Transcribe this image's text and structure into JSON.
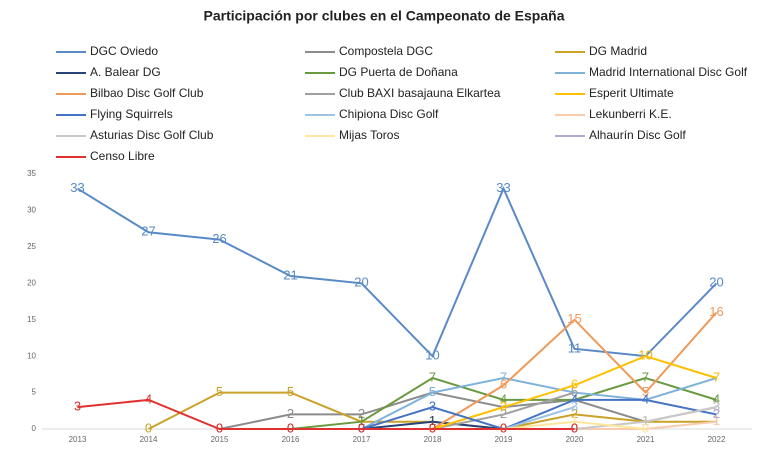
{
  "chart_data": {
    "type": "line",
    "title": "Participación por clubes en el Campeonato de España",
    "categories": [
      "2013",
      "2014",
      "2015",
      "2016",
      "2017",
      "2018",
      "2019",
      "2020",
      "2021",
      "2022"
    ],
    "ylim": [
      0,
      35
    ],
    "yticks": [
      0,
      5,
      10,
      15,
      20,
      25,
      30,
      35
    ],
    "grid": false,
    "data_labels": true,
    "series": [
      {
        "name": "DGC Oviedo",
        "color": "#5a8ac6",
        "values": [
          33,
          27,
          26,
          21,
          20,
          10,
          33,
          11,
          10,
          20
        ]
      },
      {
        "name": "Compostela DGC",
        "color": "#8c8c8c",
        "values": [
          null,
          null,
          0,
          2,
          2,
          5,
          3,
          4,
          1,
          3
        ]
      },
      {
        "name": "DG Madrid",
        "color": "#c9a227",
        "values": [
          null,
          0,
          5,
          5,
          1,
          1,
          0,
          2,
          1,
          1
        ]
      },
      {
        "name": "A. Balear DG",
        "color": "#264478",
        "values": [
          null,
          null,
          null,
          null,
          0,
          1,
          0,
          0,
          null,
          null
        ]
      },
      {
        "name": "DG Puerta de Doñana",
        "color": "#6a9a40",
        "values": [
          null,
          null,
          null,
          0,
          1,
          7,
          4,
          4,
          7,
          4
        ]
      },
      {
        "name": "Madrid International Disc Golf",
        "color": "#7fb2d9",
        "values": [
          null,
          null,
          null,
          null,
          0,
          5,
          7,
          5,
          4,
          7
        ]
      },
      {
        "name": "Bilbao Disc Golf Club",
        "color": "#ed9a5b",
        "values": [
          null,
          null,
          null,
          null,
          null,
          0,
          6,
          15,
          5,
          16
        ]
      },
      {
        "name": "Club BAXI basajauna Elkartea",
        "color": "#a0a0a0",
        "values": [
          null,
          null,
          null,
          null,
          null,
          0,
          2,
          5,
          null,
          null
        ]
      },
      {
        "name": "Esperit Ultimate",
        "color": "#ffc000",
        "values": [
          null,
          null,
          null,
          null,
          null,
          0,
          3,
          6,
          10,
          7
        ]
      },
      {
        "name": "Flying Squirrels",
        "color": "#4472c4",
        "values": [
          null,
          null,
          null,
          null,
          0,
          3,
          0,
          4,
          4,
          2
        ]
      },
      {
        "name": "Chipiona Disc Golf",
        "color": "#9dc3e6",
        "values": [
          null,
          null,
          null,
          null,
          null,
          null,
          0,
          3,
          null,
          null
        ]
      },
      {
        "name": "Lekunberri K.E.",
        "color": "#f8cbad",
        "values": [
          null,
          null,
          null,
          null,
          null,
          null,
          null,
          0,
          0,
          1
        ]
      },
      {
        "name": "Asturias Disc Golf Club",
        "color": "#c9c9c9",
        "values": [
          null,
          null,
          null,
          null,
          null,
          null,
          null,
          0,
          1,
          3
        ]
      },
      {
        "name": "Mijas Toros",
        "color": "#ffe699",
        "values": [
          null,
          null,
          null,
          null,
          null,
          null,
          0,
          1,
          0,
          null
        ]
      },
      {
        "name": "Alhaurín Disc Golf",
        "color": "#b4a7d6",
        "values": [
          null,
          null,
          null,
          null,
          null,
          null,
          null,
          0,
          null,
          2
        ]
      },
      {
        "name": "Censo Libre",
        "color": "#e03030",
        "values": [
          3,
          4,
          0,
          0,
          0,
          0,
          0,
          0,
          null,
          null
        ]
      }
    ]
  }
}
